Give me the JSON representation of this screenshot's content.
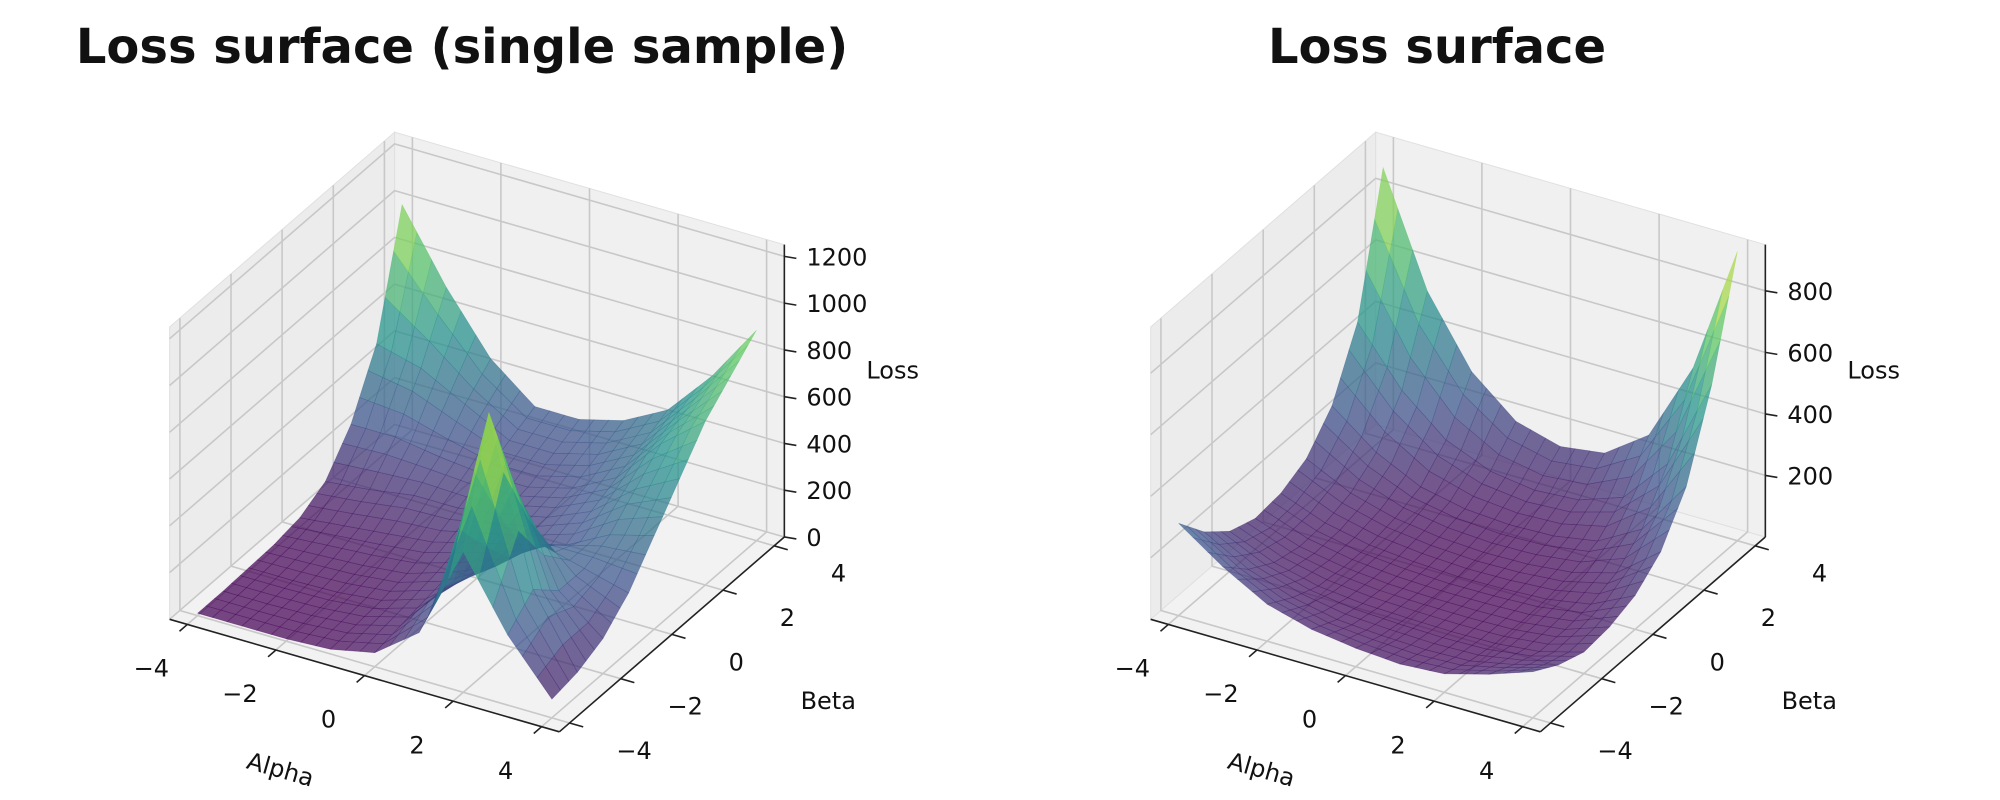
{
  "chart_data": [
    {
      "type": "surface",
      "title": "Loss surface (single sample)",
      "xlabel": "Alpha",
      "ylabel": "Beta",
      "zlabel": "Loss",
      "x": [
        -4,
        -3,
        -2,
        -1,
        0,
        1,
        2,
        3,
        4
      ],
      "y": [
        -4,
        -3,
        -2,
        -1,
        0,
        1,
        2,
        3,
        4
      ],
      "z": [
        [
          10,
          10,
          10,
          20,
          60,
          200,
          600,
          300,
          80
        ],
        [
          10,
          10,
          15,
          30,
          80,
          300,
          1100,
          400,
          100
        ],
        [
          15,
          15,
          20,
          40,
          100,
          250,
          700,
          300,
          150
        ],
        [
          20,
          30,
          40,
          60,
          120,
          200,
          350,
          300,
          250
        ],
        [
          40,
          60,
          80,
          100,
          150,
          200,
          250,
          350,
          400
        ],
        [
          100,
          120,
          150,
          150,
          180,
          220,
          300,
          450,
          550
        ],
        [
          250,
          250,
          220,
          200,
          200,
          250,
          350,
          550,
          700
        ],
        [
          500,
          450,
          350,
          250,
          250,
          300,
          400,
          600,
          800
        ],
        [
          1000,
          700,
          450,
          300,
          300,
          350,
          450,
          650,
          900
        ]
      ],
      "xlim": [
        -4.4,
        4.4
      ],
      "ylim": [
        -4.4,
        4.4
      ],
      "zlim": [
        0,
        1250
      ],
      "xticks": [
        {
          "value": -4,
          "label": "−4"
        },
        {
          "value": -2,
          "label": "−2"
        },
        0,
        2,
        4
      ],
      "yticks": [
        {
          "value": -4,
          "label": "−4"
        },
        {
          "value": -2,
          "label": "−2"
        },
        0,
        2,
        4
      ],
      "zticks": [
        0,
        200,
        400,
        600,
        800,
        1000,
        1200
      ],
      "colormap": [
        "#440154",
        "#3b528b",
        "#21918c",
        "#5ec962",
        "#fde725"
      ],
      "opacity": 0.72,
      "grid": true
    },
    {
      "type": "surface",
      "title": "Loss surface",
      "xlabel": "Alpha",
      "ylabel": "Beta",
      "zlabel": "Loss",
      "x": [
        -4,
        -3,
        -2,
        -1,
        0,
        1,
        2,
        3,
        4
      ],
      "y": [
        -4,
        -3,
        -2,
        -1,
        0,
        1,
        2,
        3,
        4
      ],
      "z": [
        [
          300,
          200,
          120,
          80,
          60,
          50,
          60,
          100,
          150
        ],
        [
          200,
          120,
          70,
          40,
          30,
          25,
          30,
          60,
          100
        ],
        [
          130,
          70,
          35,
          20,
          15,
          12,
          15,
          30,
          70
        ],
        [
          100,
          50,
          25,
          12,
          8,
          8,
          12,
          30,
          80
        ],
        [
          110,
          55,
          25,
          12,
          5,
          8,
          15,
          40,
          110
        ],
        [
          150,
          80,
          40,
          20,
          12,
          15,
          30,
          70,
          180
        ],
        [
          250,
          140,
          70,
          40,
          30,
          35,
          60,
          140,
          320
        ],
        [
          450,
          270,
          150,
          90,
          70,
          80,
          130,
          280,
          580
        ],
        [
          880,
          520,
          300,
          180,
          140,
          160,
          260,
          520,
          940
        ]
      ],
      "xlim": [
        -4.4,
        4.4
      ],
      "ylim": [
        -4.4,
        4.4
      ],
      "zlim": [
        0,
        950
      ],
      "xticks": [
        {
          "value": -4,
          "label": "−4"
        },
        {
          "value": -2,
          "label": "−2"
        },
        0,
        2,
        4
      ],
      "yticks": [
        {
          "value": -4,
          "label": "−4"
        },
        {
          "value": -2,
          "label": "−2"
        },
        0,
        2,
        4
      ],
      "zticks": [
        200,
        400,
        600,
        800
      ],
      "colormap": [
        "#440154",
        "#3b528b",
        "#21918c",
        "#5ec962",
        "#fde725"
      ],
      "opacity": 0.72,
      "grid": true
    }
  ]
}
